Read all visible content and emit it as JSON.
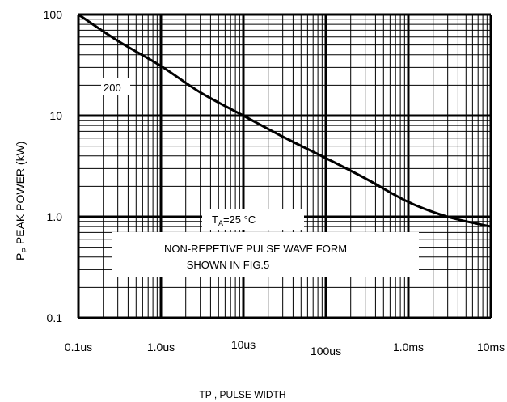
{
  "chart_data": {
    "type": "line",
    "title": "",
    "xlabel": "TP , PULSE WIDTH",
    "ylabel_main": "P",
    "ylabel_sub": "P",
    "ylabel_rest": " PEAK POWER (kW)",
    "x_scale": "log",
    "y_scale": "log",
    "xlim": [
      "0.1us",
      "10ms"
    ],
    "ylim": [
      0.1,
      100
    ],
    "grid": true,
    "x_tick_labels": [
      "0.1us",
      "1.0us",
      "10us",
      "100us",
      "1.0ms",
      "10ms"
    ],
    "y_tick_labels": [
      "100",
      "10",
      "1.0",
      "0.1"
    ],
    "series": [
      {
        "x": [
          "0.1us",
          "0.3us",
          "1.0us",
          "3us",
          "10us",
          "30us",
          "100us",
          "300us",
          "1.0ms",
          "3ms",
          "10ms"
        ],
        "y": [
          100,
          55,
          31,
          17,
          10,
          6.2,
          3.8,
          2.4,
          1.4,
          1.0,
          0.8
        ]
      }
    ],
    "annotations": {
      "curve_label": "200",
      "ta_main": "T",
      "ta_sub": "A",
      "ta_rest": "=25 °C",
      "note_line1": "NON-REPETIVE PULSE WAVE   FORM",
      "note_line2": "SHOWN IN FIG.5"
    },
    "colors": {
      "line": "#000000",
      "grid": "#000000",
      "background": "#ffffff"
    }
  }
}
